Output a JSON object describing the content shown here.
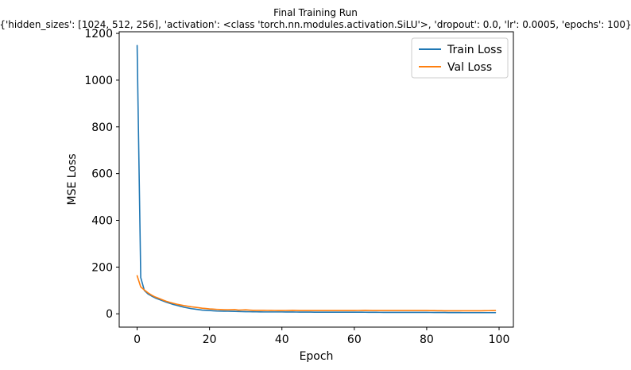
{
  "chart_data": {
    "type": "line",
    "title": "Final Training Run",
    "subtitle": "{'hidden_sizes': [1024, 512, 256], 'activation': <class 'torch.nn.modules.activation.SiLU'>, 'dropout': 0.0, 'lr': 0.0005, 'epochs': 100}",
    "xlabel": "Epoch",
    "ylabel": "MSE Loss",
    "xlim": [
      -4.95,
      103.95
    ],
    "ylim": [
      -57,
      1207
    ],
    "xticks": [
      0,
      20,
      40,
      60,
      80,
      100
    ],
    "yticks": [
      0,
      200,
      400,
      600,
      800,
      1000,
      1200
    ],
    "grid": false,
    "legend_position": "upper-right",
    "series": [
      {
        "name": "Train Loss",
        "color": "#1f77b4",
        "points": [
          [
            0,
            1148
          ],
          [
            1,
            155
          ],
          [
            2,
            100
          ],
          [
            3,
            85
          ],
          [
            4,
            76
          ],
          [
            5,
            68
          ],
          [
            6,
            62
          ],
          [
            7,
            56
          ],
          [
            8,
            50
          ],
          [
            9,
            45
          ],
          [
            10,
            40
          ],
          [
            11,
            36
          ],
          [
            12,
            32
          ],
          [
            13,
            28
          ],
          [
            15,
            22
          ],
          [
            18,
            16
          ],
          [
            20,
            14
          ],
          [
            22,
            12
          ],
          [
            25,
            11
          ],
          [
            30,
            9
          ],
          [
            35,
            8
          ],
          [
            40,
            8
          ],
          [
            50,
            7
          ],
          [
            60,
            7
          ],
          [
            70,
            6
          ],
          [
            80,
            6
          ],
          [
            90,
            5
          ],
          [
            99,
            5
          ]
        ]
      },
      {
        "name": "Val Loss",
        "color": "#ff7f0e",
        "points": [
          [
            0,
            163
          ],
          [
            1,
            115
          ],
          [
            2,
            102
          ],
          [
            3,
            90
          ],
          [
            4,
            80
          ],
          [
            5,
            72
          ],
          [
            6,
            66
          ],
          [
            7,
            60
          ],
          [
            8,
            54
          ],
          [
            9,
            49
          ],
          [
            10,
            45
          ],
          [
            11,
            41
          ],
          [
            12,
            38
          ],
          [
            13,
            35
          ],
          [
            15,
            30
          ],
          [
            18,
            24
          ],
          [
            20,
            21
          ],
          [
            22,
            19
          ],
          [
            25,
            17
          ],
          [
            27,
            18
          ],
          [
            28,
            16
          ],
          [
            30,
            17
          ],
          [
            32,
            15
          ],
          [
            35,
            15
          ],
          [
            40,
            14
          ],
          [
            43,
            15
          ],
          [
            45,
            14
          ],
          [
            50,
            14
          ],
          [
            55,
            14
          ],
          [
            60,
            14
          ],
          [
            63,
            15
          ],
          [
            65,
            14
          ],
          [
            70,
            14
          ],
          [
            75,
            14
          ],
          [
            80,
            14
          ],
          [
            85,
            13
          ],
          [
            90,
            13
          ],
          [
            95,
            13
          ],
          [
            99,
            14
          ]
        ]
      }
    ]
  }
}
